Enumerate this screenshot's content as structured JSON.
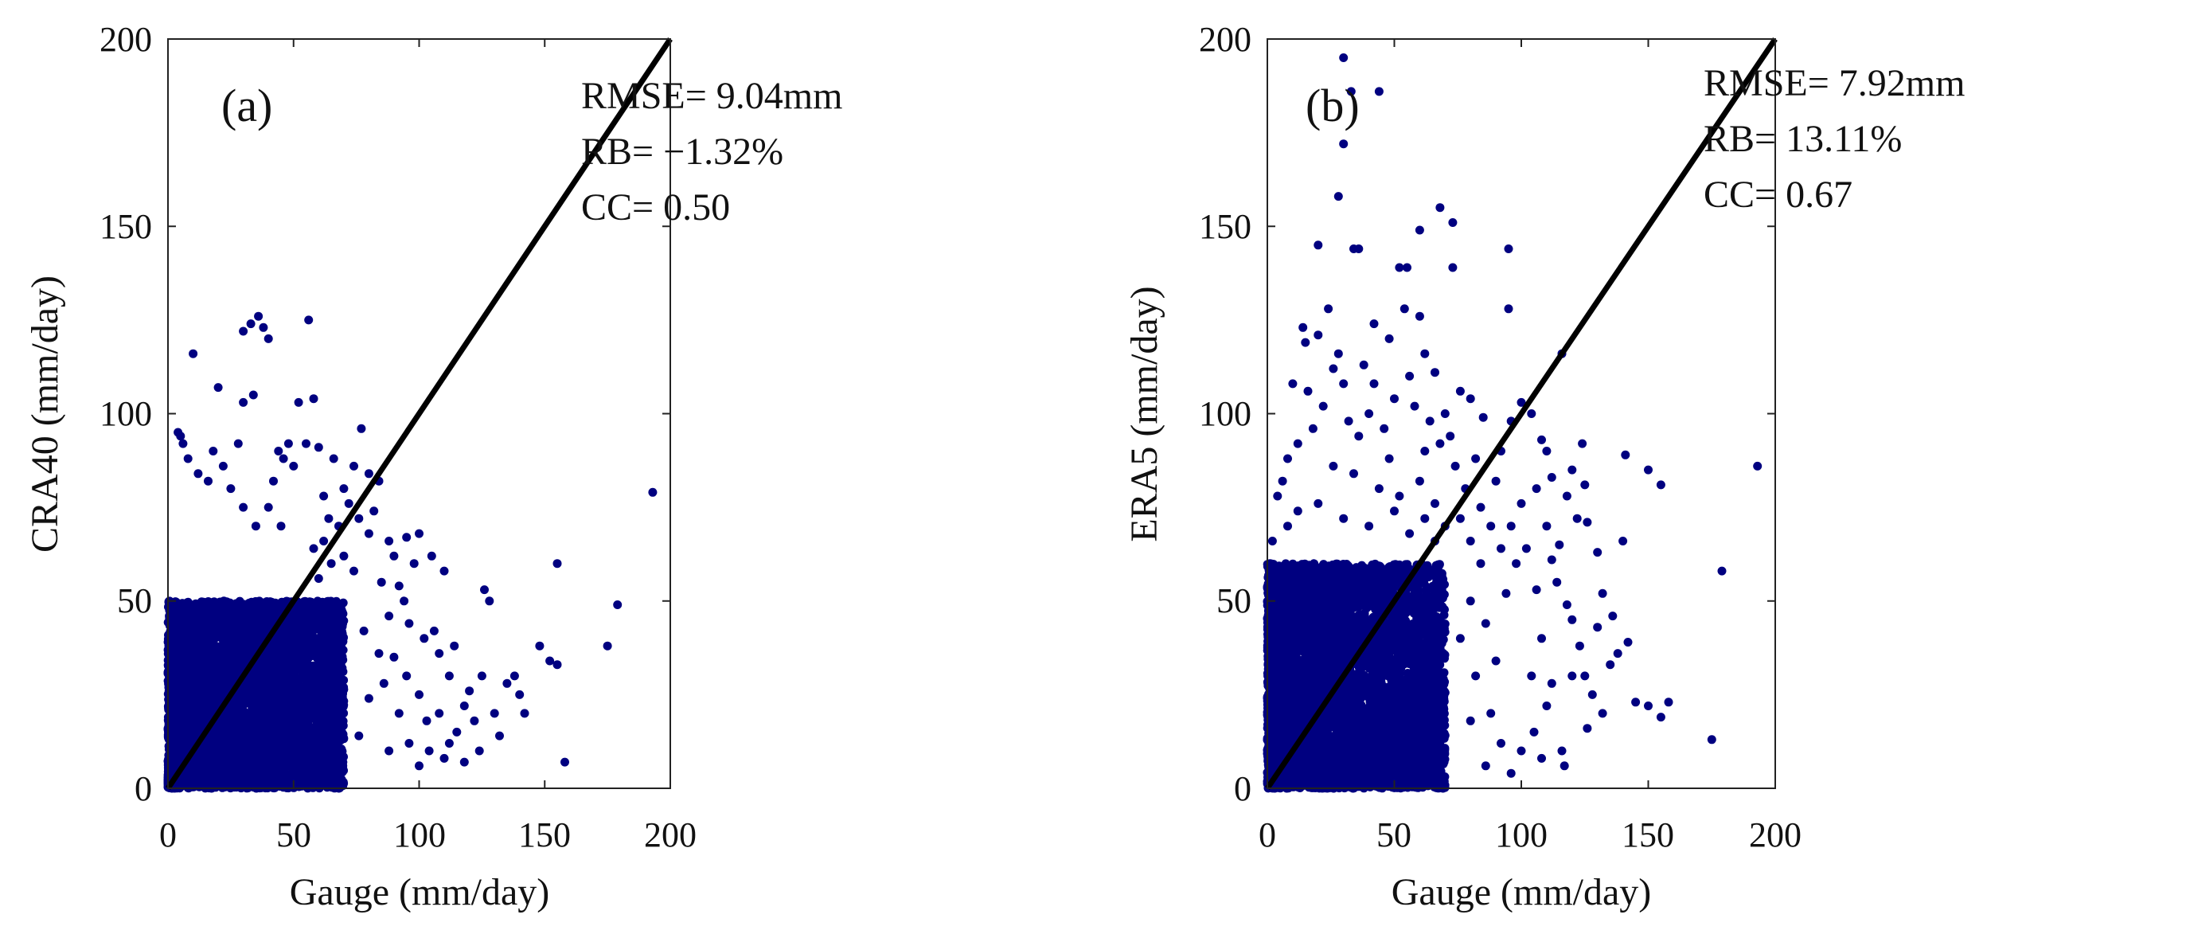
{
  "figure": {
    "point_color": "#000080",
    "line_color": "#000000",
    "axis_color": "#222222"
  },
  "chart_data": [
    {
      "type": "scatter",
      "panel_label": "(a)",
      "xlabel": "Gauge (mm/day)",
      "ylabel": "CRA40 (mm/day)",
      "xlim": [
        0,
        200
      ],
      "ylim": [
        0,
        200
      ],
      "xticks": [
        0,
        50,
        100,
        150,
        200
      ],
      "yticks": [
        0,
        50,
        100,
        150,
        200
      ],
      "xtick_labels": [
        "0",
        "50",
        "100",
        "150",
        "200"
      ],
      "ytick_labels": [
        "0",
        "50",
        "100",
        "150",
        "200"
      ],
      "reference_line": {
        "name": "1:1 line",
        "from": [
          0,
          0
        ],
        "to": [
          200,
          200
        ]
      },
      "stats": {
        "rmse": "RMSE= 9.04mm",
        "rb": "RB= −1.32%",
        "cc": "CC= 0.50"
      },
      "dense_cluster": {
        "x_range": [
          0,
          70
        ],
        "y_range": [
          0,
          50
        ],
        "n": 5200,
        "seed": 11
      },
      "outliers": [
        [
          10,
          116
        ],
        [
          20,
          107
        ],
        [
          30,
          122
        ],
        [
          33,
          124
        ],
        [
          36,
          126
        ],
        [
          38,
          123
        ],
        [
          40,
          120
        ],
        [
          30,
          103
        ],
        [
          34,
          105
        ],
        [
          52,
          103
        ],
        [
          56,
          125
        ],
        [
          58,
          104
        ],
        [
          4,
          95
        ],
        [
          5,
          94
        ],
        [
          6,
          92
        ],
        [
          8,
          88
        ],
        [
          12,
          84
        ],
        [
          16,
          82
        ],
        [
          18,
          90
        ],
        [
          22,
          86
        ],
        [
          25,
          80
        ],
        [
          28,
          92
        ],
        [
          44,
          90
        ],
        [
          46,
          88
        ],
        [
          48,
          92
        ],
        [
          50,
          86
        ],
        [
          55,
          92
        ],
        [
          60,
          91
        ],
        [
          66,
          88
        ],
        [
          74,
          86
        ],
        [
          77,
          96
        ],
        [
          80,
          84
        ],
        [
          84,
          82
        ],
        [
          62,
          78
        ],
        [
          70,
          80
        ],
        [
          72,
          76
        ],
        [
          64,
          72
        ],
        [
          68,
          70
        ],
        [
          76,
          72
        ],
        [
          80,
          68
        ],
        [
          82,
          74
        ],
        [
          88,
          66
        ],
        [
          90,
          62
        ],
        [
          95,
          67
        ],
        [
          100,
          68
        ],
        [
          98,
          60
        ],
        [
          105,
          62
        ],
        [
          110,
          58
        ],
        [
          92,
          54
        ],
        [
          94,
          50
        ],
        [
          88,
          46
        ],
        [
          96,
          44
        ],
        [
          102,
          40
        ],
        [
          106,
          42
        ],
        [
          108,
          36
        ],
        [
          112,
          30
        ],
        [
          114,
          38
        ],
        [
          118,
          22
        ],
        [
          120,
          26
        ],
        [
          122,
          18
        ],
        [
          124,
          10
        ],
        [
          126,
          53
        ],
        [
          128,
          50
        ],
        [
          130,
          20
        ],
        [
          132,
          14
        ],
        [
          118,
          7
        ],
        [
          110,
          8
        ],
        [
          104,
          10
        ],
        [
          100,
          6
        ],
        [
          96,
          12
        ],
        [
          92,
          20
        ],
        [
          86,
          28
        ],
        [
          84,
          36
        ],
        [
          78,
          42
        ],
        [
          80,
          24
        ],
        [
          76,
          14
        ],
        [
          88,
          10
        ],
        [
          138,
          30
        ],
        [
          140,
          25
        ],
        [
          142,
          20
        ],
        [
          148,
          38
        ],
        [
          152,
          34
        ],
        [
          155,
          60
        ],
        [
          155,
          33
        ],
        [
          158,
          7
        ],
        [
          175,
          38
        ],
        [
          179,
          49
        ],
        [
          193,
          79
        ],
        [
          60,
          56
        ],
        [
          65,
          60
        ],
        [
          70,
          62
        ],
        [
          74,
          58
        ],
        [
          58,
          64
        ],
        [
          62,
          66
        ],
        [
          45,
          70
        ],
        [
          40,
          75
        ],
        [
          35,
          70
        ],
        [
          30,
          75
        ],
        [
          42,
          82
        ],
        [
          85,
          55
        ],
        [
          90,
          35
        ],
        [
          100,
          25
        ],
        [
          95,
          30
        ],
        [
          103,
          18
        ],
        [
          115,
          15
        ],
        [
          108,
          20
        ],
        [
          112,
          12
        ],
        [
          125,
          30
        ],
        [
          135,
          28
        ]
      ]
    },
    {
      "type": "scatter",
      "panel_label": "(b)",
      "xlabel": "Gauge (mm/day)",
      "ylabel": "ERA5 (mm/day)",
      "xlim": [
        0,
        200
      ],
      "ylim": [
        0,
        200
      ],
      "xticks": [
        0,
        50,
        100,
        150,
        200
      ],
      "yticks": [
        0,
        50,
        100,
        150,
        200
      ],
      "xtick_labels": [
        "0",
        "50",
        "100",
        "150",
        "200"
      ],
      "ytick_labels": [
        "0",
        "50",
        "100",
        "150",
        "200"
      ],
      "reference_line": {
        "name": "1:1 line",
        "from": [
          0,
          0
        ],
        "to": [
          200,
          200
        ]
      },
      "stats": {
        "rmse": "RMSE= 7.92mm",
        "rb": "RB= 13.11%",
        "cc": "CC= 0.67"
      },
      "dense_cluster": {
        "x_range": [
          0,
          70
        ],
        "y_range": [
          0,
          60
        ],
        "n": 5200,
        "seed": 23
      },
      "outliers": [
        [
          30,
          195
        ],
        [
          33,
          186
        ],
        [
          44,
          186
        ],
        [
          30,
          172
        ],
        [
          28,
          158
        ],
        [
          60,
          149
        ],
        [
          68,
          155
        ],
        [
          73,
          151
        ],
        [
          34,
          144
        ],
        [
          36,
          144
        ],
        [
          20,
          145
        ],
        [
          55,
          139
        ],
        [
          52,
          139
        ],
        [
          73,
          139
        ],
        [
          95,
          144
        ],
        [
          95,
          128
        ],
        [
          42,
          124
        ],
        [
          48,
          120
        ],
        [
          54,
          128
        ],
        [
          60,
          126
        ],
        [
          14,
          123
        ],
        [
          15,
          119
        ],
        [
          20,
          121
        ],
        [
          24,
          128
        ],
        [
          26,
          112
        ],
        [
          28,
          116
        ],
        [
          38,
          113
        ],
        [
          62,
          116
        ],
        [
          66,
          111
        ],
        [
          76,
          106
        ],
        [
          80,
          104
        ],
        [
          85,
          99
        ],
        [
          92,
          90
        ],
        [
          96,
          98
        ],
        [
          100,
          103
        ],
        [
          104,
          100
        ],
        [
          108,
          93
        ],
        [
          110,
          90
        ],
        [
          112,
          83
        ],
        [
          116,
          116
        ],
        [
          118,
          78
        ],
        [
          120,
          85
        ],
        [
          122,
          72
        ],
        [
          124,
          92
        ],
        [
          125,
          81
        ],
        [
          126,
          71
        ],
        [
          130,
          63
        ],
        [
          140,
          66
        ],
        [
          141,
          89
        ],
        [
          150,
          85
        ],
        [
          155,
          81
        ],
        [
          193,
          86
        ],
        [
          130,
          43
        ],
        [
          135,
          33
        ],
        [
          138,
          36
        ],
        [
          142,
          39
        ],
        [
          145,
          23
        ],
        [
          150,
          22
        ],
        [
          155,
          19
        ],
        [
          158,
          23
        ],
        [
          175,
          13
        ],
        [
          179,
          58
        ],
        [
          112,
          61
        ],
        [
          114,
          55
        ],
        [
          118,
          49
        ],
        [
          120,
          45
        ],
        [
          123,
          38
        ],
        [
          125,
          30
        ],
        [
          128,
          25
        ],
        [
          110,
          22
        ],
        [
          105,
          15
        ],
        [
          100,
          10
        ],
        [
          117,
          6
        ],
        [
          96,
          4
        ],
        [
          88,
          20
        ],
        [
          90,
          34
        ],
        [
          86,
          44
        ],
        [
          94,
          52
        ],
        [
          98,
          60
        ],
        [
          102,
          64
        ],
        [
          106,
          53
        ],
        [
          108,
          40
        ],
        [
          104,
          30
        ],
        [
          112,
          28
        ],
        [
          78,
          80
        ],
        [
          82,
          88
        ],
        [
          84,
          75
        ],
        [
          88,
          70
        ],
        [
          90,
          82
        ],
        [
          72,
          94
        ],
        [
          70,
          100
        ],
        [
          68,
          92
        ],
        [
          74,
          86
        ],
        [
          64,
          98
        ],
        [
          58,
          102
        ],
        [
          50,
          104
        ],
        [
          46,
          96
        ],
        [
          40,
          100
        ],
        [
          36,
          94
        ],
        [
          32,
          98
        ],
        [
          22,
          102
        ],
        [
          18,
          96
        ],
        [
          12,
          92
        ],
        [
          8,
          88
        ],
        [
          6,
          82
        ],
        [
          10,
          108
        ],
        [
          16,
          106
        ],
        [
          30,
          108
        ],
        [
          42,
          108
        ],
        [
          56,
          110
        ],
        [
          62,
          90
        ],
        [
          48,
          88
        ],
        [
          26,
          86
        ],
        [
          34,
          84
        ],
        [
          44,
          80
        ],
        [
          52,
          78
        ],
        [
          60,
          82
        ],
        [
          66,
          76
        ],
        [
          76,
          72
        ],
        [
          80,
          66
        ],
        [
          84,
          60
        ],
        [
          92,
          64
        ],
        [
          96,
          70
        ],
        [
          100,
          76
        ],
        [
          66,
          66
        ],
        [
          70,
          70
        ],
        [
          62,
          72
        ],
        [
          56,
          68
        ],
        [
          50,
          74
        ],
        [
          40,
          70
        ],
        [
          30,
          72
        ],
        [
          20,
          76
        ],
        [
          12,
          74
        ],
        [
          8,
          70
        ],
        [
          4,
          78
        ],
        [
          2,
          66
        ],
        [
          106,
          80
        ],
        [
          110,
          70
        ],
        [
          115,
          65
        ],
        [
          132,
          52
        ],
        [
          136,
          46
        ],
        [
          120,
          30
        ],
        [
          126,
          16
        ],
        [
          132,
          20
        ],
        [
          116,
          10
        ],
        [
          108,
          8
        ],
        [
          92,
          12
        ],
        [
          86,
          6
        ],
        [
          80,
          18
        ],
        [
          82,
          30
        ],
        [
          76,
          40
        ],
        [
          80,
          50
        ]
      ]
    }
  ]
}
